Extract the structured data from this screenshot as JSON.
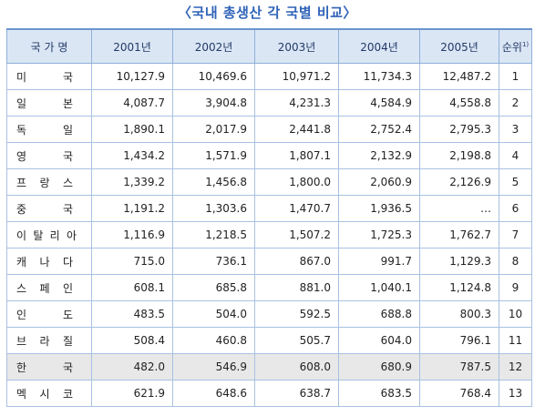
{
  "title": "〈국내 총생산 각 국별 비교〉",
  "headers": [
    "국 가 명",
    "2001년",
    "2002년",
    "2003년",
    "2004년",
    "2005년",
    "순위"
  ],
  "rank_sup": "1)",
  "rows": [
    {
      "country": [
        "미",
        "국"
      ],
      "values": [
        "10,127.9",
        "10,469.6",
        "10,971.2",
        "11,734.3",
        "12,487.2"
      ],
      "rank": "1"
    },
    {
      "country": [
        "일",
        "본"
      ],
      "values": [
        "4,087.7",
        "3,904.8",
        "4,231.3",
        "4,584.9",
        "4,558.8"
      ],
      "rank": "2"
    },
    {
      "country": [
        "독",
        "일"
      ],
      "values": [
        "1,890.1",
        "2,017.9",
        "2,441.8",
        "2,752.4",
        "2,795.3"
      ],
      "rank": "3"
    },
    {
      "country": [
        "영",
        "국"
      ],
      "values": [
        "1,434.2",
        "1,571.9",
        "1,807.1",
        "2,132.9",
        "2,198.8"
      ],
      "rank": "4"
    },
    {
      "country": [
        "프",
        "랑",
        "스"
      ],
      "values": [
        "1,339.2",
        "1,456.8",
        "1,800.0",
        "2,060.9",
        "2,126.9"
      ],
      "rank": "5"
    },
    {
      "country": [
        "중",
        "국"
      ],
      "values": [
        "1,191.2",
        "1,303.6",
        "1,470.7",
        "1,936.5",
        "…"
      ],
      "rank": "6"
    },
    {
      "country": [
        "이",
        "탈",
        "리",
        "아"
      ],
      "values": [
        "1,116.9",
        "1,218.5",
        "1,507.2",
        "1,725.3",
        "1,762.7"
      ],
      "rank": "7"
    },
    {
      "country": [
        "캐",
        "나",
        "다"
      ],
      "values": [
        "715.0",
        "736.1",
        "867.0",
        "991.7",
        "1,129.3"
      ],
      "rank": "8"
    },
    {
      "country": [
        "스",
        "페",
        "인"
      ],
      "values": [
        "608.1",
        "685.8",
        "881.0",
        "1,040.1",
        "1,124.8"
      ],
      "rank": "9"
    },
    {
      "country": [
        "인",
        "도"
      ],
      "values": [
        "483.5",
        "504.0",
        "592.5",
        "688.8",
        "800.3"
      ],
      "rank": "10"
    },
    {
      "country": [
        "브",
        "라",
        "질"
      ],
      "values": [
        "508.4",
        "460.8",
        "505.7",
        "604.0",
        "796.1"
      ],
      "rank": "11"
    },
    {
      "country": [
        "한",
        "국"
      ],
      "values": [
        "482.0",
        "546.9",
        "608.0",
        "680.9",
        "787.5"
      ],
      "rank": "12",
      "highlight": true
    },
    {
      "country": [
        "멕",
        "시",
        "코"
      ],
      "values": [
        "621.9",
        "648.6",
        "638.7",
        "683.5",
        "768.4"
      ],
      "rank": "13"
    }
  ]
}
